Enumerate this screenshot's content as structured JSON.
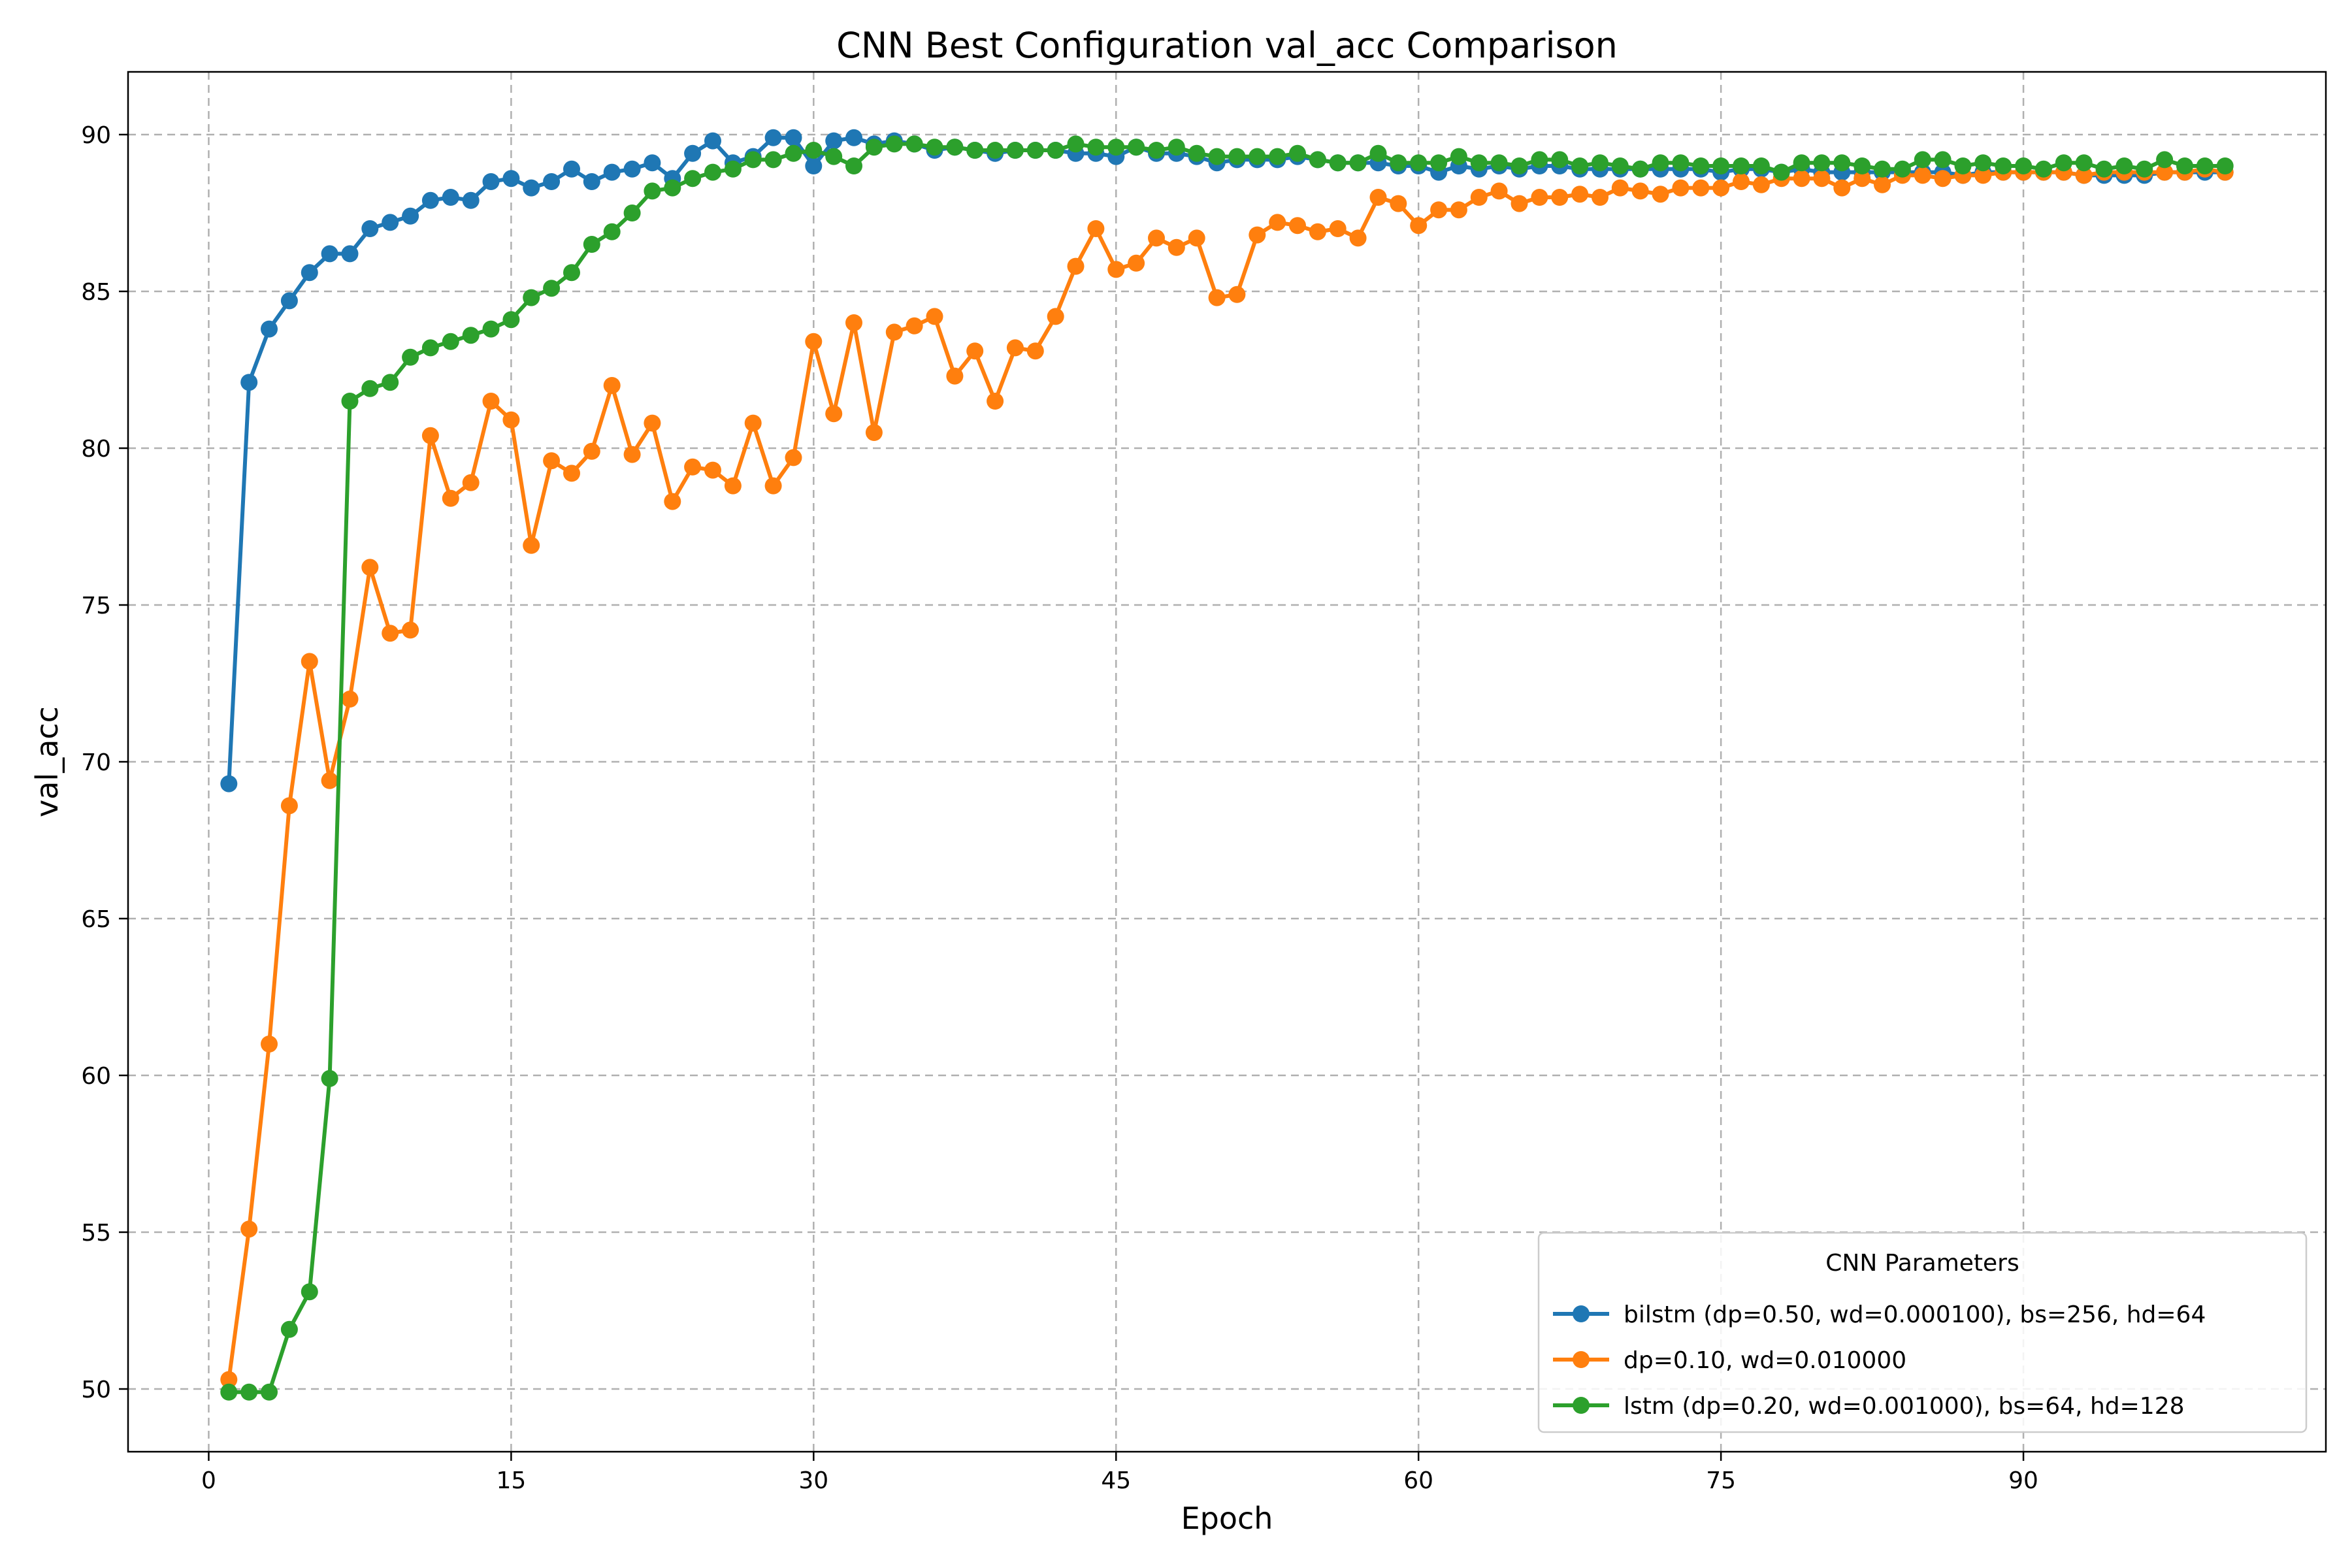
{
  "chart_data": {
    "type": "line",
    "title": "CNN Best Configuration val_acc Comparison",
    "xlabel": "Epoch",
    "ylabel": "val_acc",
    "xlim": [
      -4,
      105
    ],
    "ylim": [
      48,
      92
    ],
    "xticks": [
      0,
      15,
      30,
      45,
      60,
      75,
      90
    ],
    "yticks": [
      50,
      55,
      60,
      65,
      70,
      75,
      80,
      85,
      90
    ],
    "grid": true,
    "legend": {
      "title": "CNN Parameters",
      "placement": "lower-right"
    },
    "series": [
      {
        "name": "bilstm (dp=0.50, wd=0.000100), bs=256, hd=64",
        "color": "#1f77b4",
        "x_start": 1,
        "values": [
          69.3,
          82.1,
          83.8,
          84.7,
          85.6,
          86.2,
          86.2,
          87.0,
          87.2,
          87.4,
          87.9,
          88.0,
          87.9,
          88.5,
          88.6,
          88.3,
          88.5,
          88.9,
          88.5,
          88.8,
          88.9,
          89.1,
          88.6,
          89.4,
          89.8,
          89.1,
          89.3,
          89.9,
          89.9,
          89.0,
          89.8,
          89.9,
          89.7,
          89.8,
          89.7,
          89.5,
          89.6,
          89.5,
          89.4,
          89.5,
          89.5,
          89.5,
          89.4,
          89.4,
          89.3,
          89.6,
          89.4,
          89.4,
          89.3,
          89.1,
          89.2,
          89.2,
          89.2,
          89.3,
          89.2,
          89.1,
          89.1,
          89.1,
          89.0,
          89.0,
          88.8,
          89.0,
          88.9,
          89.0,
          88.9,
          89.0,
          89.0,
          88.9,
          88.9,
          88.9,
          88.9,
          88.9,
          88.9,
          88.9,
          88.8,
          88.9,
          88.9,
          88.8,
          88.9,
          88.8,
          88.8,
          88.8,
          88.8,
          88.8,
          88.8,
          88.8,
          88.7,
          88.8,
          88.8,
          88.8,
          88.8,
          88.8,
          88.7,
          88.7,
          88.7,
          88.7,
          88.8,
          88.8,
          88.8,
          88.8
        ]
      },
      {
        "name": "dp=0.10, wd=0.010000",
        "color": "#ff7f0e",
        "x_start": 1,
        "values": [
          50.3,
          55.1,
          61.0,
          68.6,
          73.2,
          69.4,
          72.0,
          76.2,
          74.1,
          74.2,
          80.4,
          78.4,
          78.9,
          81.5,
          80.9,
          76.9,
          79.6,
          79.2,
          79.9,
          82.0,
          79.8,
          80.8,
          78.3,
          79.4,
          79.3,
          78.8,
          80.8,
          78.8,
          79.7,
          83.4,
          81.1,
          84.0,
          80.5,
          83.7,
          83.9,
          84.2,
          82.3,
          83.1,
          81.5,
          83.2,
          83.1,
          84.2,
          85.8,
          87.0,
          85.7,
          85.9,
          86.7,
          86.4,
          86.7,
          84.8,
          84.9,
          86.8,
          87.2,
          87.1,
          86.9,
          87.0,
          86.7,
          88.0,
          87.8,
          87.1,
          87.6,
          87.6,
          88.0,
          88.2,
          87.8,
          88.0,
          88.0,
          88.1,
          88.0,
          88.3,
          88.2,
          88.1,
          88.3,
          88.3,
          88.3,
          88.5,
          88.4,
          88.6,
          88.6,
          88.6,
          88.3,
          88.6,
          88.4,
          88.7,
          88.7,
          88.6,
          88.7,
          88.7,
          88.8,
          88.8,
          88.8,
          88.8,
          88.7,
          88.8,
          88.8,
          88.8,
          88.8,
          88.8,
          88.9,
          88.8
        ]
      },
      {
        "name": "lstm (dp=0.20, wd=0.001000), bs=64, hd=128",
        "color": "#2ca02c",
        "x_start": 1,
        "values": [
          49.9,
          49.9,
          49.9,
          51.9,
          53.1,
          59.9,
          81.5,
          81.9,
          82.1,
          82.9,
          83.2,
          83.4,
          83.6,
          83.8,
          84.1,
          84.8,
          85.1,
          85.6,
          86.5,
          86.9,
          87.5,
          88.2,
          88.3,
          88.6,
          88.8,
          88.9,
          89.2,
          89.2,
          89.4,
          89.5,
          89.3,
          89.0,
          89.6,
          89.7,
          89.7,
          89.6,
          89.6,
          89.5,
          89.5,
          89.5,
          89.5,
          89.5,
          89.7,
          89.6,
          89.6,
          89.6,
          89.5,
          89.6,
          89.4,
          89.3,
          89.3,
          89.3,
          89.3,
          89.4,
          89.2,
          89.1,
          89.1,
          89.4,
          89.1,
          89.1,
          89.1,
          89.3,
          89.1,
          89.1,
          89.0,
          89.2,
          89.2,
          89.0,
          89.1,
          89.0,
          88.9,
          89.1,
          89.1,
          89.0,
          89.0,
          89.0,
          89.0,
          88.8,
          89.1,
          89.1,
          89.1,
          89.0,
          88.9,
          88.9,
          89.2,
          89.2,
          89.0,
          89.1,
          89.0,
          89.0,
          88.9,
          89.1,
          89.1,
          88.9,
          89.0,
          88.9,
          89.2,
          89.0,
          89.0,
          89.0
        ]
      }
    ]
  }
}
